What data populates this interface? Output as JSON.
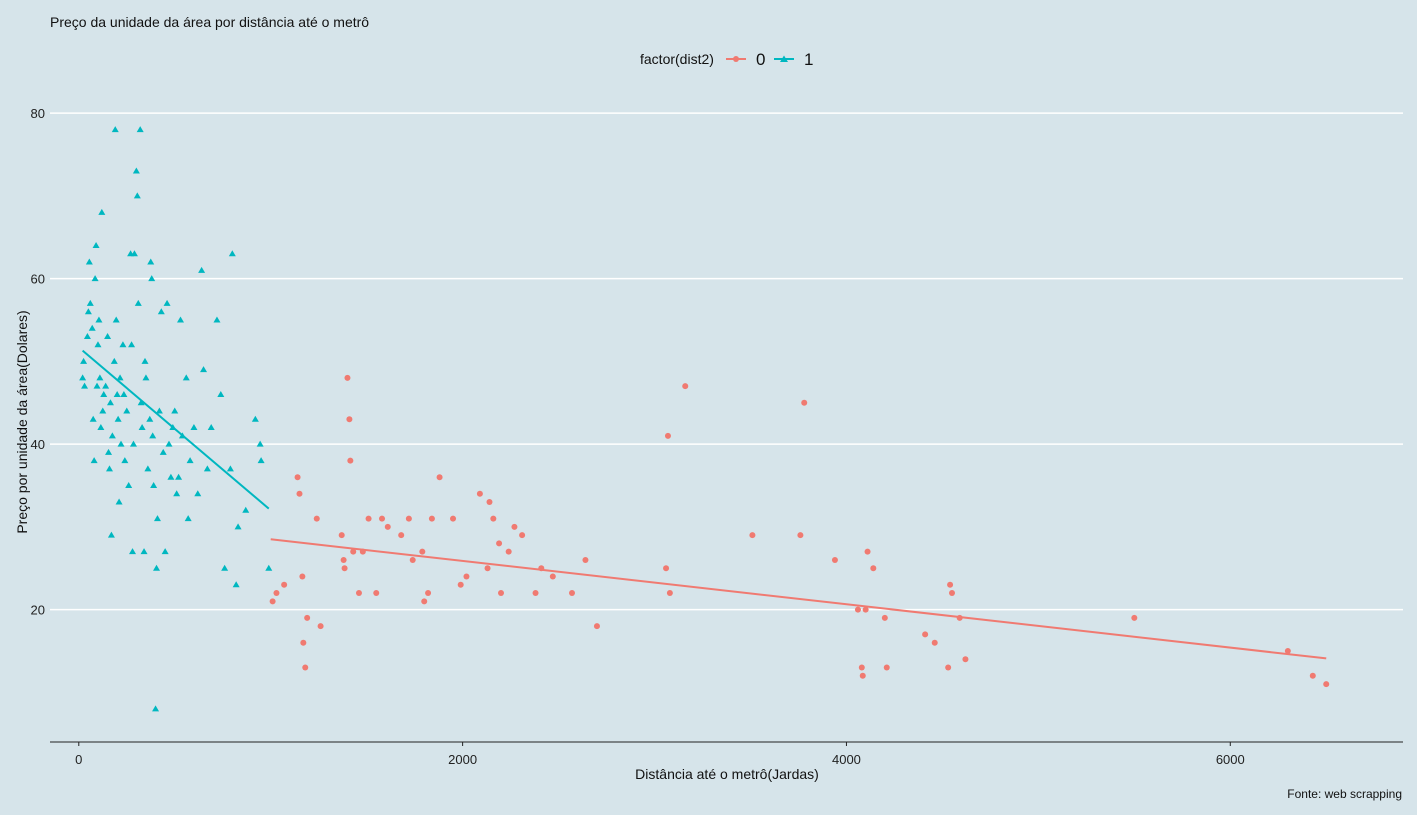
{
  "chart_data": {
    "type": "scatter",
    "title": "Preço da unidade da área por distância até o metrô",
    "xlabel": "Distância até o metrô(Jardas)",
    "ylabel": "Preço por unidade da área(Dolares)",
    "caption": "Fonte: web scrapping",
    "xlim": [
      -150,
      6900
    ],
    "ylim": [
      4,
      84
    ],
    "xticks": [
      0,
      2000,
      4000,
      6000
    ],
    "yticks": [
      20,
      40,
      60,
      80
    ],
    "grid": "horizontal major gridlines",
    "legend": {
      "title": "factor(dist2)",
      "position": "top",
      "entries": [
        "0",
        "1"
      ]
    },
    "colors": {
      "0": "#f07a71",
      "1": "#00b7c0",
      "background": "#d6e4ea",
      "grid": "#ffffff"
    },
    "series": [
      {
        "name": "1",
        "marker": "triangle",
        "color": "#00b7c0",
        "trend": [
          [
            20,
            51.3
          ],
          [
            990,
            32.2
          ]
        ],
        "points": [
          [
            20,
            48
          ],
          [
            25,
            50
          ],
          [
            30,
            47
          ],
          [
            45,
            53
          ],
          [
            50,
            56
          ],
          [
            55,
            62
          ],
          [
            60,
            57
          ],
          [
            70,
            54
          ],
          [
            75,
            43
          ],
          [
            80,
            38
          ],
          [
            85,
            60
          ],
          [
            90,
            64
          ],
          [
            95,
            47
          ],
          [
            100,
            52
          ],
          [
            105,
            55
          ],
          [
            110,
            48
          ],
          [
            115,
            42
          ],
          [
            120,
            68
          ],
          [
            125,
            44
          ],
          [
            130,
            46
          ],
          [
            140,
            47
          ],
          [
            150,
            53
          ],
          [
            155,
            39
          ],
          [
            160,
            37
          ],
          [
            165,
            45
          ],
          [
            170,
            29
          ],
          [
            175,
            41
          ],
          [
            185,
            50
          ],
          [
            190,
            78
          ],
          [
            195,
            55
          ],
          [
            200,
            46
          ],
          [
            205,
            43
          ],
          [
            210,
            33
          ],
          [
            215,
            48
          ],
          [
            220,
            40
          ],
          [
            230,
            52
          ],
          [
            235,
            46
          ],
          [
            240,
            38
          ],
          [
            250,
            44
          ],
          [
            260,
            35
          ],
          [
            270,
            63
          ],
          [
            275,
            52
          ],
          [
            280,
            27
          ],
          [
            285,
            40
          ],
          [
            290,
            63
          ],
          [
            300,
            73
          ],
          [
            305,
            70
          ],
          [
            310,
            57
          ],
          [
            320,
            78
          ],
          [
            325,
            45
          ],
          [
            330,
            42
          ],
          [
            340,
            27
          ],
          [
            345,
            50
          ],
          [
            350,
            48
          ],
          [
            360,
            37
          ],
          [
            370,
            43
          ],
          [
            375,
            62
          ],
          [
            380,
            60
          ],
          [
            385,
            41
          ],
          [
            390,
            35
          ],
          [
            400,
            8
          ],
          [
            405,
            25
          ],
          [
            410,
            31
          ],
          [
            420,
            44
          ],
          [
            430,
            56
          ],
          [
            440,
            39
          ],
          [
            450,
            27
          ],
          [
            460,
            57
          ],
          [
            470,
            40
          ],
          [
            480,
            36
          ],
          [
            490,
            42
          ],
          [
            500,
            44
          ],
          [
            510,
            34
          ],
          [
            520,
            36
          ],
          [
            530,
            55
          ],
          [
            540,
            41
          ],
          [
            560,
            48
          ],
          [
            570,
            31
          ],
          [
            580,
            38
          ],
          [
            600,
            42
          ],
          [
            620,
            34
          ],
          [
            640,
            61
          ],
          [
            650,
            49
          ],
          [
            670,
            37
          ],
          [
            690,
            42
          ],
          [
            720,
            55
          ],
          [
            740,
            46
          ],
          [
            760,
            25
          ],
          [
            790,
            37
          ],
          [
            800,
            63
          ],
          [
            820,
            23
          ],
          [
            830,
            30
          ],
          [
            870,
            32
          ],
          [
            920,
            43
          ],
          [
            945,
            40
          ],
          [
            950,
            38
          ],
          [
            990,
            25
          ]
        ]
      },
      {
        "name": "0",
        "marker": "circle",
        "color": "#f07a71",
        "trend": [
          [
            1000,
            28.5
          ],
          [
            6500,
            14.1
          ]
        ],
        "points": [
          [
            1010,
            21
          ],
          [
            1030,
            22
          ],
          [
            1070,
            23
          ],
          [
            1140,
            36
          ],
          [
            1150,
            34
          ],
          [
            1165,
            24
          ],
          [
            1170,
            16
          ],
          [
            1180,
            13
          ],
          [
            1190,
            19
          ],
          [
            1240,
            31
          ],
          [
            1260,
            18
          ],
          [
            1370,
            29
          ],
          [
            1380,
            26
          ],
          [
            1385,
            25
          ],
          [
            1400,
            48
          ],
          [
            1410,
            43
          ],
          [
            1415,
            38
          ],
          [
            1430,
            27
          ],
          [
            1460,
            22
          ],
          [
            1480,
            27
          ],
          [
            1510,
            31
          ],
          [
            1550,
            22
          ],
          [
            1580,
            31
          ],
          [
            1610,
            30
          ],
          [
            1680,
            29
          ],
          [
            1720,
            31
          ],
          [
            1740,
            26
          ],
          [
            1790,
            27
          ],
          [
            1800,
            21
          ],
          [
            1820,
            22
          ],
          [
            1840,
            31
          ],
          [
            1880,
            36
          ],
          [
            1950,
            31
          ],
          [
            1990,
            23
          ],
          [
            2020,
            24
          ],
          [
            2090,
            34
          ],
          [
            2130,
            25
          ],
          [
            2140,
            33
          ],
          [
            2160,
            31
          ],
          [
            2190,
            28
          ],
          [
            2200,
            22
          ],
          [
            2240,
            27
          ],
          [
            2270,
            30
          ],
          [
            2310,
            29
          ],
          [
            2380,
            22
          ],
          [
            2410,
            25
          ],
          [
            2470,
            24
          ],
          [
            2570,
            22
          ],
          [
            2640,
            26
          ],
          [
            2700,
            18
          ],
          [
            3060,
            25
          ],
          [
            3070,
            41
          ],
          [
            3080,
            22
          ],
          [
            3160,
            47
          ],
          [
            3510,
            29
          ],
          [
            3760,
            29
          ],
          [
            3780,
            45
          ],
          [
            3940,
            26
          ],
          [
            4060,
            20
          ],
          [
            4080,
            13
          ],
          [
            4085,
            12
          ],
          [
            4100,
            20
          ],
          [
            4110,
            27
          ],
          [
            4140,
            25
          ],
          [
            4200,
            19
          ],
          [
            4210,
            13
          ],
          [
            4410,
            17
          ],
          [
            4460,
            16
          ],
          [
            4530,
            13
          ],
          [
            4540,
            23
          ],
          [
            4550,
            22
          ],
          [
            4590,
            19
          ],
          [
            4620,
            14
          ],
          [
            5500,
            19
          ],
          [
            6300,
            15
          ],
          [
            6430,
            12
          ],
          [
            6500,
            11
          ]
        ]
      }
    ]
  }
}
